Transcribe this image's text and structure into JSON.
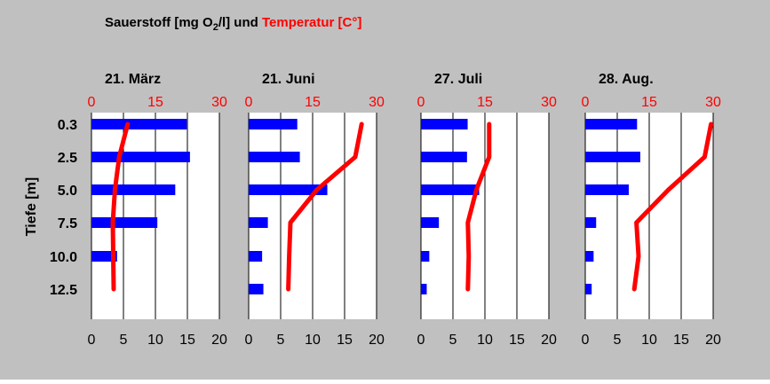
{
  "title": {
    "prefix": "Sauerstoff [mg O",
    "subscript": "2",
    "middle": "/l] und ",
    "red": "Temperatur [C°]"
  },
  "colors": {
    "background": "#c0c0c0",
    "plot_area": "#ffffff",
    "oxygen_bar": "#0000ff",
    "temperature_line": "#ff0000",
    "grid": "#000000",
    "text": "#000000",
    "temperature_text": "#ff0000"
  },
  "chart_data": {
    "type": "bar",
    "title": "Sauerstoff [mg O2/l] und Temperatur [C°]",
    "ylabel": "Tiefe [m]",
    "categories": [
      "0.3",
      "2.5",
      "5.0",
      "7.5",
      "10.0",
      "12.5"
    ],
    "depths": [
      0.3,
      2.5,
      5.0,
      7.5,
      10.0,
      12.5
    ],
    "oxygen_axis": {
      "range": [
        0,
        20
      ],
      "ticks": [
        "0",
        "5",
        "10",
        "15",
        "20"
      ]
    },
    "temperature_axis": {
      "range": [
        0,
        30
      ],
      "ticks": [
        "0",
        "15",
        "30"
      ]
    },
    "grid": "vertical",
    "panels": [
      {
        "date": "21. März",
        "oxygen": [
          14.9,
          15.4,
          13.1,
          10.3,
          4.0,
          null
        ],
        "temperature": [
          8.5,
          6.5,
          5.5,
          5.0,
          5.1,
          5.2
        ]
      },
      {
        "date": "21. Juni",
        "oxygen": [
          7.6,
          8.0,
          12.3,
          3.0,
          2.1,
          2.3
        ],
        "temperature": [
          26.5,
          25.0,
          16.0,
          9.8,
          9.5,
          9.3
        ]
      },
      {
        "date": "27. Juli",
        "oxygen": [
          7.3,
          7.2,
          9.1,
          2.8,
          1.3,
          0.9
        ],
        "temperature": [
          16.0,
          16.0,
          13.0,
          11.0,
          11.2,
          11.0
        ]
      },
      {
        "date": "28. Aug.",
        "oxygen": [
          8.1,
          8.6,
          6.8,
          1.7,
          1.3,
          1.0
        ],
        "temperature": [
          29.5,
          28.0,
          19.5,
          12.0,
          12.5,
          11.5
        ]
      }
    ]
  }
}
